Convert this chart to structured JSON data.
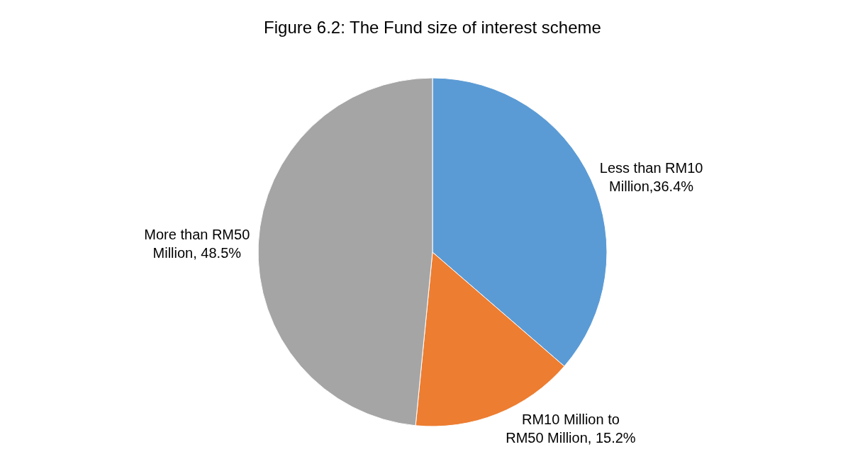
{
  "chart_data": {
    "type": "pie",
    "title": "Figure 6.2: The Fund size of interest scheme",
    "categories": [
      "Less than RM10 Million",
      "RM10 Million to RM50 Million",
      "More than RM50 Million"
    ],
    "values": [
      36.4,
      15.2,
      48.5
    ],
    "value_labels": [
      "36.4%",
      " 15.2%",
      " 48.5%"
    ],
    "colors": [
      "#5b9bd5",
      "#ed7d31",
      "#a5a5a5"
    ],
    "legend": false
  }
}
